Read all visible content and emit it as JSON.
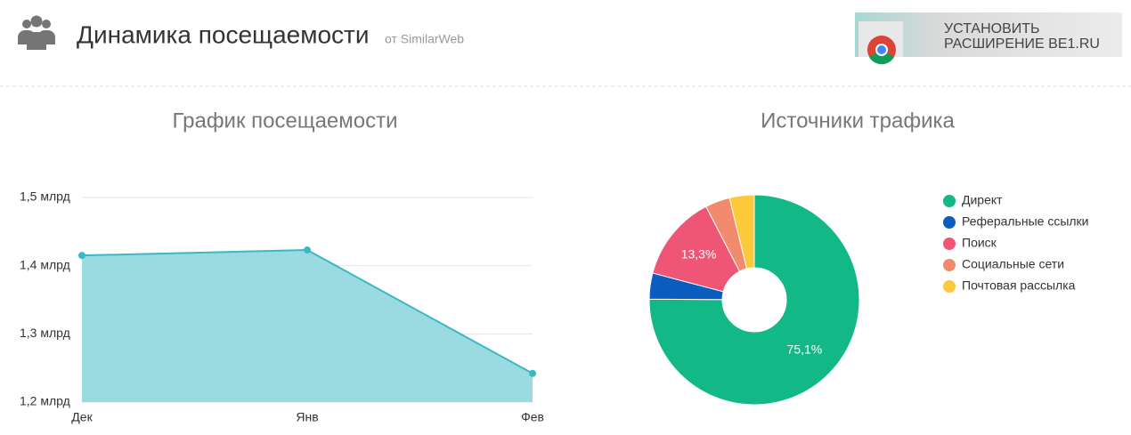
{
  "header": {
    "title": "Динамика посещаемости",
    "source": "от SimilarWeb",
    "banner": [
      "УСТАНОВИТЬ",
      "РАСШИРЕНИЕ BE1.RU"
    ]
  },
  "chart_data": [
    {
      "type": "area",
      "title": "График посещаемости",
      "categories": [
        "Дек",
        "Янв",
        "Фев"
      ],
      "values": [
        1.415,
        1.423,
        1.242
      ],
      "color": "#3bb8c3",
      "fill": "#9adbe1",
      "ylim": [
        1.2,
        1.5
      ],
      "yticks": [
        {
          "value": 1.5,
          "label": "1,5 млрд"
        },
        {
          "value": 1.4,
          "label": "1,4 млрд"
        },
        {
          "value": 1.3,
          "label": "1,3 млрд"
        },
        {
          "value": 1.2,
          "label": "1,2 млрд"
        }
      ],
      "grid": true
    },
    {
      "type": "donut",
      "title": "Источники трафика",
      "categories": [
        "Директ",
        "Реферальные ссылки",
        "Поиск",
        "Социальные сети",
        "Почтовая рассылка"
      ],
      "values": [
        75.1,
        4.0,
        13.3,
        3.8,
        3.8
      ],
      "value_labels": [
        "75,1%",
        null,
        "13,3%",
        null,
        null
      ],
      "colors": [
        "#13b887",
        "#0a5cbf",
        "#ef5675",
        "#f28b6e",
        "#fcc93a"
      ],
      "legend": "right"
    }
  ]
}
